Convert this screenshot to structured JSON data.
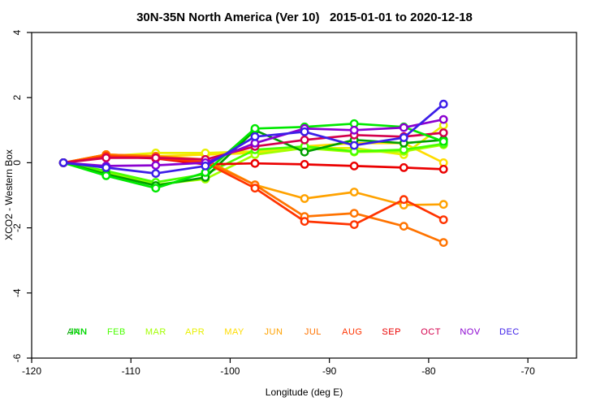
{
  "title": "30N-35N North America (Ver 10)   2015-01-01 to 2020-12-18",
  "chart_data": {
    "type": "line",
    "title": "30N-35N North America (Ver 10)   2015-01-01 to 2020-12-18",
    "xlabel": "Longitude (deg E)",
    "ylabel": "XCO2 - Western Box",
    "xlim": [
      -120,
      -65.1
    ],
    "ylim": [
      -6,
      4
    ],
    "grid": false,
    "x_ticks": [
      -120,
      -110,
      -100,
      -90,
      -80,
      -70
    ],
    "y_ticks": [
      4,
      2,
      0,
      -2,
      -4,
      -6
    ],
    "x": [
      -116.8,
      -112.5,
      -107.5,
      -102.5,
      -97.5,
      -92.5,
      -87.5,
      -82.5,
      -78.5
    ],
    "legend_position": "bottom",
    "series": [
      {
        "name": "ANN",
        "color": "#00A000",
        "values": [
          0,
          -0.35,
          -0.7,
          -0.45,
          1.0,
          0.33,
          0.7,
          0.6,
          0.7
        ]
      },
      {
        "name": "JAN",
        "color": "#00E800",
        "values": [
          0,
          -0.4,
          -0.78,
          -0.3,
          1.05,
          1.1,
          1.2,
          1.1,
          0.65
        ]
      },
      {
        "name": "FEB",
        "color": "#49FF00",
        "values": [
          0,
          -0.25,
          -0.6,
          -0.35,
          0.4,
          0.5,
          0.35,
          0.4,
          0.58
        ]
      },
      {
        "name": "MAR",
        "color": "#A2FF00",
        "values": [
          0,
          -0.3,
          -0.67,
          -0.5,
          0.25,
          0.45,
          0.33,
          0.35,
          0.55
        ]
      },
      {
        "name": "APR",
        "color": "#E8F000",
        "values": [
          0,
          0.2,
          0.3,
          0.3,
          0.35,
          0.45,
          0.45,
          0.25,
          1.15
        ]
      },
      {
        "name": "MAY",
        "color": "#FFDC00",
        "values": [
          0,
          0.25,
          0.2,
          0.25,
          0.3,
          0.5,
          0.6,
          0.6,
          0.0
        ]
      },
      {
        "name": "JUN",
        "color": "#FFA200",
        "values": [
          0,
          0.25,
          0.2,
          0.1,
          -0.68,
          -1.1,
          -0.9,
          -1.3,
          -1.28
        ]
      },
      {
        "name": "JUL",
        "color": "#FF7300",
        "values": [
          0,
          0.25,
          0.2,
          0.05,
          -0.68,
          -1.65,
          -1.55,
          -1.95,
          -2.45
        ]
      },
      {
        "name": "AUG",
        "color": "#FF3300",
        "values": [
          0,
          0.2,
          0.15,
          0.0,
          -0.78,
          -1.8,
          -1.9,
          -1.13,
          -1.75
        ]
      },
      {
        "name": "SEP",
        "color": "#EB0000",
        "values": [
          0,
          0.2,
          0.13,
          -0.05,
          -0.02,
          -0.05,
          -0.1,
          -0.15,
          -0.2
        ]
      },
      {
        "name": "OCT",
        "color": "#D4004C",
        "values": [
          0,
          0.15,
          0.15,
          0.1,
          0.5,
          0.7,
          0.85,
          0.8,
          0.92
        ]
      },
      {
        "name": "NOV",
        "color": "#8A00D0",
        "values": [
          0,
          -0.1,
          -0.08,
          0.0,
          0.6,
          1.05,
          1.0,
          1.08,
          1.33
        ]
      },
      {
        "name": "DEC",
        "color": "#3C1EE8",
        "values": [
          0,
          -0.15,
          -0.33,
          -0.1,
          0.8,
          0.95,
          0.53,
          0.77,
          1.8
        ]
      }
    ]
  },
  "legend": {
    "items": [
      {
        "label": "ANN",
        "color": "#00A000",
        "slot": 0
      },
      {
        "label": "JAN",
        "color": "#00E800",
        "slot": 0
      },
      {
        "label": "FEB",
        "color": "#49FF00",
        "slot": 1
      },
      {
        "label": "MAR",
        "color": "#A2FF00",
        "slot": 2
      },
      {
        "label": "APR",
        "color": "#E8F000",
        "slot": 3
      },
      {
        "label": "MAY",
        "color": "#FFDC00",
        "slot": 4
      },
      {
        "label": "JUN",
        "color": "#FFA200",
        "slot": 5
      },
      {
        "label": "JUL",
        "color": "#FF7300",
        "slot": 6
      },
      {
        "label": "AUG",
        "color": "#FF3300",
        "slot": 7
      },
      {
        "label": "SEP",
        "color": "#EB0000",
        "slot": 8
      },
      {
        "label": "OCT",
        "color": "#D4004C",
        "slot": 9
      },
      {
        "label": "NOV",
        "color": "#8A00D0",
        "slot": 10
      },
      {
        "label": "DEC",
        "color": "#3C1EE8",
        "slot": 11
      }
    ]
  }
}
